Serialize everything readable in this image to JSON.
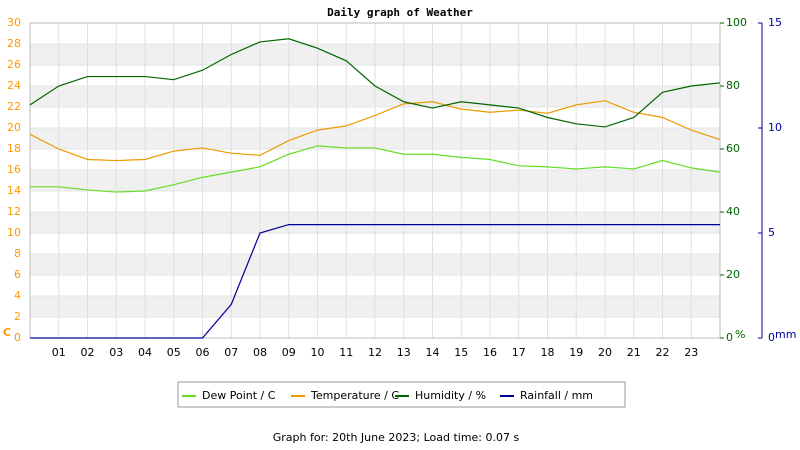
{
  "chart_data": {
    "type": "line",
    "title": "Daily graph of Weather",
    "x": [
      0,
      1,
      2,
      3,
      4,
      5,
      6,
      7,
      8,
      9,
      10,
      11,
      12,
      13,
      14,
      15,
      16,
      17,
      18,
      19,
      20,
      21,
      22,
      23,
      24
    ],
    "xlim": [
      0,
      24
    ],
    "xticks": [
      {
        "value": 1,
        "label": "01"
      },
      {
        "value": 2,
        "label": "02"
      },
      {
        "value": 3,
        "label": "03"
      },
      {
        "value": 4,
        "label": "04"
      },
      {
        "value": 5,
        "label": "05"
      },
      {
        "value": 6,
        "label": "06"
      },
      {
        "value": 7,
        "label": "07"
      },
      {
        "value": 8,
        "label": "08"
      },
      {
        "value": 9,
        "label": "09"
      },
      10,
      11,
      12,
      13,
      14,
      15,
      16,
      17,
      18,
      19,
      20,
      21,
      22,
      23
    ],
    "ylim": [
      0,
      30
    ],
    "yticks": [
      0,
      2,
      4,
      6,
      8,
      10,
      12,
      14,
      16,
      18,
      20,
      22,
      24,
      26,
      28,
      30
    ],
    "y_unit": "C",
    "y_color": "#ff9900",
    "y2lim": [
      0,
      100
    ],
    "y2ticks": [
      0,
      20,
      40,
      60,
      80,
      100
    ],
    "y2_unit": "%",
    "y2_color": "#006600",
    "y3lim": [
      0,
      15
    ],
    "y3ticks": [
      0,
      5,
      10,
      15
    ],
    "y3_unit": "mm",
    "y3_color": "#000099",
    "grid": true,
    "series": [
      {
        "name": "Dew Point / C",
        "color": "#66dd22",
        "values": [
          14.4,
          14.4,
          14.1,
          13.9,
          14,
          14.6,
          15.3,
          15.8,
          16.3,
          17.5,
          18.3,
          18.1,
          18.1,
          17.5,
          17.5,
          17.2,
          17,
          16.4,
          16.3,
          16.1,
          16.3,
          16.1,
          16.9,
          16.2,
          15.8
        ]
      },
      {
        "name": "Temperature / C",
        "color": "#ee9900",
        "values": [
          19.4,
          18,
          17,
          16.9,
          17,
          17.8,
          18.1,
          17.6,
          17.4,
          18.8,
          19.8,
          20.2,
          21.2,
          22.3,
          22.5,
          21.8,
          21.5,
          21.7,
          21.4,
          22.2,
          22.6,
          21.5,
          21,
          19.8,
          18.9
        ]
      },
      {
        "name": "Humidity / %",
        "color": "#006600",
        "axis": "y2",
        "values": [
          74,
          80,
          83,
          83,
          83,
          82,
          85,
          90,
          94,
          95,
          92,
          88,
          80,
          75,
          73,
          75,
          74,
          73,
          70,
          68,
          67,
          70,
          78,
          80,
          81
        ]
      },
      {
        "name": "Rainfall / mm",
        "color": "#000099",
        "axis": "y3",
        "values": [
          0,
          0,
          0,
          0,
          0,
          0,
          0,
          1.6,
          5,
          5.4,
          5.4,
          5.4,
          5.4,
          5.4,
          5.4,
          5.4,
          5.4,
          5.4,
          5.4,
          5.4,
          5.4,
          5.4,
          5.4,
          5.4,
          5.4
        ]
      }
    ],
    "footer": "Graph for: 20th June 2023; Load time: 0.07 s"
  }
}
